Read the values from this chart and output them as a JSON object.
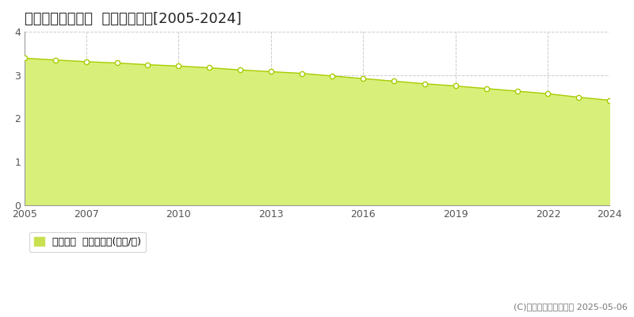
{
  "title": "度会郡大紀町打見  基準地価推移[2005-2024]",
  "years": [
    2005,
    2006,
    2007,
    2008,
    2009,
    2010,
    2011,
    2012,
    2013,
    2014,
    2015,
    2016,
    2017,
    2018,
    2019,
    2020,
    2021,
    2022,
    2023,
    2024
  ],
  "values": [
    3.39,
    3.35,
    3.31,
    3.28,
    3.24,
    3.21,
    3.17,
    3.12,
    3.08,
    3.04,
    2.98,
    2.92,
    2.86,
    2.8,
    2.75,
    2.69,
    2.63,
    2.57,
    2.49,
    2.42
  ],
  "line_color": "#a8cc00",
  "fill_color": "#d8f07a",
  "marker_face_color": "#ffffff",
  "marker_edge_color": "#a8cc00",
  "ylim": [
    0,
    4
  ],
  "yticks": [
    0,
    1,
    2,
    3,
    4
  ],
  "xticks": [
    2005,
    2007,
    2010,
    2013,
    2016,
    2019,
    2022,
    2024
  ],
  "grid_color": "#cccccc",
  "bg_color": "#ffffff",
  "legend_label": "基準地価  平均坪単価(万円/坪)",
  "legend_square_color": "#c8e050",
  "copyright_text": "(C)土地価格ドットコム 2025-05-06",
  "title_fontsize": 13,
  "tick_fontsize": 9,
  "legend_fontsize": 9,
  "copyright_fontsize": 8
}
